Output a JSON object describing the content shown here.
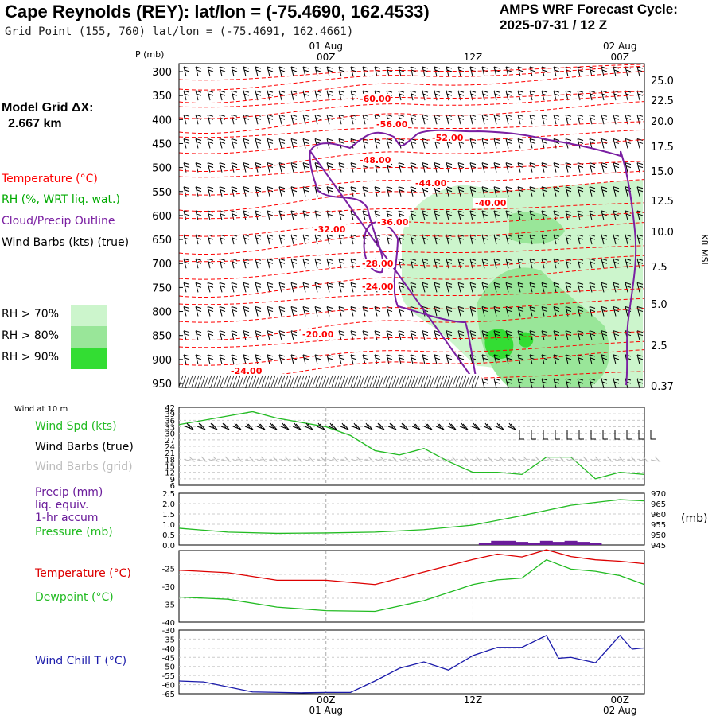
{
  "header": {
    "title": "Cape Reynolds (REY):  lat/lon = (-75.4690, 162.4533)",
    "subtitle": "Grid Point (155, 760) lat/lon = (-75.4691, 162.4661)",
    "cycle_line1": "AMPS WRF Forecast Cycle:",
    "cycle_line2": "2025-07-31 / 12  Z",
    "model_grid_label": "Model Grid ΔX:",
    "model_grid_value": "2.667 km"
  },
  "legend": {
    "temperature": "Temperature (°C)",
    "rh": "RH (%, WRT liq. wat.)",
    "cloud": "Cloud/Precip Outline",
    "wind": "Wind Barbs (kts) (true)",
    "rh70": "RH > 70%",
    "rh80": "RH > 80%",
    "rh90": "RH > 90%"
  },
  "colors": {
    "temperature": "#ff0000",
    "rh_text": "#00aa00",
    "cloud": "#7a1fa2",
    "rh70": "#ccf5cc",
    "rh80": "#99e699",
    "rh90": "#33dd33",
    "wind_speed": "#22bb22",
    "wind_chill": "#1a1aaa",
    "precip": "#6a1b9a"
  },
  "time_axis": {
    "top_labels": [
      {
        "date": "01 Aug",
        "time": "00Z"
      },
      {
        "date": "",
        "time": "12Z"
      },
      {
        "date": "02 Aug",
        "time": "00Z"
      }
    ],
    "bottom_labels": [
      {
        "time": "00Z",
        "date": "01 Aug"
      },
      {
        "time": "12Z",
        "date": ""
      },
      {
        "time": "00Z",
        "date": "02 Aug"
      }
    ]
  },
  "chart_data": [
    {
      "type": "heatmap",
      "name": "time-height cross section",
      "ylabel": "P (mb)",
      "ylabel_right": "Kft MSL",
      "pressure_ticks": [
        300,
        350,
        400,
        450,
        500,
        550,
        600,
        650,
        700,
        750,
        800,
        850,
        900,
        950
      ],
      "height_ticks": [
        "25.0",
        "22.5",
        "20.0",
        "17.5",
        "15.0",
        "12.5",
        "10.0",
        "7.5",
        "5.0",
        "2.5",
        "0.37"
      ],
      "temperature_contour_labels": [
        "-60.00",
        "-56.00",
        "-52.00",
        "-48.00",
        "-44.00",
        "-40.00",
        "-36.00",
        "-32.00",
        "-28.00",
        "-24.00",
        "-20.00",
        "-24.00"
      ]
    },
    {
      "type": "line",
      "name": "wind at 10 m",
      "panel_title": "Wind at 10 m",
      "labels": [
        "Wind Spd (kts)",
        "Wind Barbs (true)",
        "Wind Barbs (grid)"
      ],
      "y_ticks": [
        "42",
        "39",
        "36",
        "33",
        "30",
        "27",
        "24",
        "21",
        "18",
        "15",
        "12",
        "9",
        "6"
      ],
      "x_hours": [
        -12,
        -10,
        -8,
        -6,
        -4,
        -2,
        0,
        2,
        4,
        6,
        8,
        10,
        12,
        14,
        16,
        18,
        20,
        22,
        24,
        26
      ],
      "wind_speed": [
        34,
        36,
        38,
        40,
        37,
        35,
        33,
        29,
        22,
        20,
        23,
        17,
        12,
        12,
        11,
        19,
        19,
        9,
        12,
        11
      ]
    },
    {
      "type": "line",
      "name": "precip and pressure",
      "labels": [
        "Precip (mm)",
        "liq. equiv.",
        "1-hr accum",
        "Pressure (mb)"
      ],
      "y_ticks_left": [
        "2.5",
        "2.0",
        "1.5",
        "1.0",
        "0.5",
        "0.0"
      ],
      "y_ticks_right": [
        "970",
        "965",
        "960",
        "955",
        "950",
        "945"
      ],
      "right_unit": "(mb)",
      "x_hours": [
        -12,
        -8,
        -4,
        0,
        4,
        8,
        12,
        16,
        20,
        24,
        26
      ],
      "pressure": [
        953.1,
        951.2,
        950.6,
        950.8,
        951.2,
        952.4,
        954.6,
        959.2,
        964.2,
        966.9,
        966.3
      ],
      "precip_x_hours": [
        13,
        14,
        15,
        16,
        17,
        18,
        19,
        20,
        21,
        22
      ],
      "precip_mm": [
        0.1,
        0.2,
        0.2,
        0.15,
        0.1,
        0.2,
        0.15,
        0.2,
        0.15,
        0.1
      ]
    },
    {
      "type": "line",
      "name": "temperature and dewpoint",
      "labels": [
        "Temperature (°C)",
        "Dewpoint (°C)"
      ],
      "y_ticks": [
        "-25",
        "-30",
        "-35",
        "-40"
      ],
      "x_hours": [
        -12,
        -8,
        -4,
        0,
        4,
        8,
        12,
        14,
        16,
        18,
        20,
        22,
        24,
        26
      ],
      "temperature": [
        -25.5,
        -26.2,
        -28.3,
        -28.3,
        -29.5,
        -26.0,
        -22.5,
        -21.0,
        -21.8,
        -19.8,
        -21.7,
        -22.6,
        -23.0,
        -23.7
      ],
      "dewpoint": [
        -33.0,
        -33.6,
        -35.8,
        -36.8,
        -37.0,
        -34.0,
        -29.5,
        -28.2,
        -27.7,
        -22.6,
        -25.2,
        -25.8,
        -27.0,
        -29.5
      ]
    },
    {
      "type": "line",
      "name": "wind chill",
      "labels": [
        "Wind Chill T (°C)"
      ],
      "y_ticks": [
        "-30",
        "-35",
        "-40",
        "-45",
        "-50",
        "-55",
        "-60",
        "-65"
      ],
      "x_hours": [
        -12,
        -10,
        -6,
        -2,
        0,
        2,
        4,
        6,
        8,
        10,
        12,
        14,
        16,
        18,
        19,
        20,
        22,
        24,
        25,
        26
      ],
      "wind_chill": [
        -58,
        -58.5,
        -64,
        -64.5,
        -64.3,
        -64.3,
        -58,
        -51,
        -47.5,
        -52,
        -44,
        -39.5,
        -39.5,
        -33,
        -45.5,
        -45,
        -48,
        -33,
        -40.5,
        -39.8
      ]
    }
  ]
}
